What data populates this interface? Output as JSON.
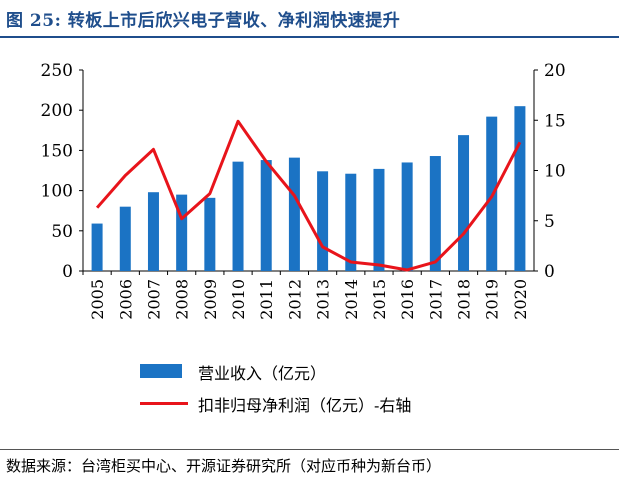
{
  "figure": {
    "title": "图 25:  转板上市后欣兴电子营收、净利润快速提升",
    "source": "数据来源：台湾柜买中心、开源证券研究所（对应币种为新台币）"
  },
  "colors": {
    "bar": "#1b73c4",
    "line": "#e8141b",
    "title": "#1f4e8c"
  },
  "chart_data": {
    "type": "bar+line",
    "categories": [
      "2005",
      "2006",
      "2007",
      "2008",
      "2009",
      "2010",
      "2011",
      "2012",
      "2013",
      "2014",
      "2015",
      "2016",
      "2017",
      "2018",
      "2019",
      "2020"
    ],
    "series": [
      {
        "name": "营业收入（亿元）",
        "type": "bar",
        "axis": "left",
        "values": [
          59,
          80,
          98,
          95,
          91,
          136,
          138,
          141,
          124,
          121,
          127,
          135,
          143,
          169,
          192,
          205
        ]
      },
      {
        "name": "扣非归母净利润（亿元）-右轴",
        "type": "line",
        "axis": "right",
        "values": [
          6.3,
          9.5,
          12.1,
          5.2,
          7.7,
          14.9,
          10.9,
          7.5,
          2.4,
          0.9,
          0.6,
          0.1,
          0.9,
          3.7,
          7.4,
          12.8
        ]
      }
    ],
    "y_left": {
      "min": 0,
      "max": 250,
      "ticks": [
        "0",
        "50",
        "100",
        "150",
        "200",
        "250"
      ]
    },
    "y_right": {
      "min": 0,
      "max": 20,
      "ticks": [
        "0",
        "5",
        "10",
        "15",
        "20"
      ]
    },
    "legend_position": "bottom-center"
  }
}
